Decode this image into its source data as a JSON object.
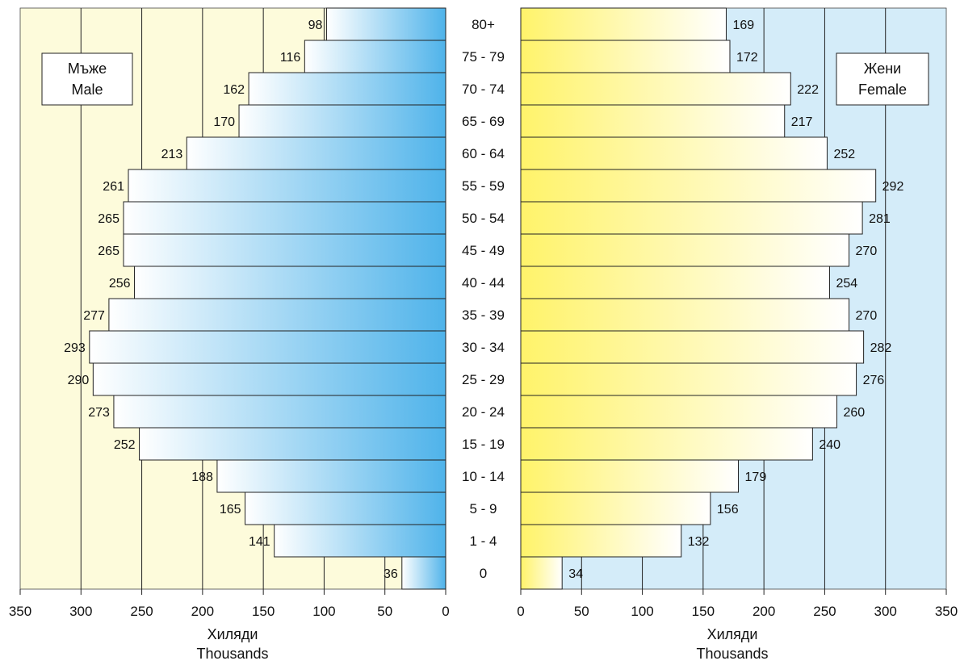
{
  "chart_data": {
    "type": "bar",
    "orientation": "horizontal",
    "layout": "population-pyramid",
    "categories": [
      "80+",
      "75 - 79",
      "70 - 74",
      "65 - 69",
      "60 - 64",
      "55 - 59",
      "50 - 54",
      "45 - 49",
      "40 - 44",
      "35 - 39",
      "30 - 34",
      "25 - 29",
      "20 - 24",
      "15 - 19",
      "10 - 14",
      "5 -  9",
      "1 -  4",
      "0"
    ],
    "series": [
      {
        "name": "Мъже Male",
        "legend_lines": [
          "Мъже",
          "Male"
        ],
        "values": [
          98,
          116,
          162,
          170,
          213,
          261,
          265,
          265,
          256,
          277,
          293,
          290,
          273,
          252,
          188,
          165,
          141,
          36
        ]
      },
      {
        "name": "Жени Female",
        "legend_lines": [
          "Жени",
          "Female"
        ],
        "values": [
          169,
          172,
          222,
          217,
          252,
          292,
          281,
          270,
          254,
          270,
          282,
          276,
          260,
          240,
          179,
          156,
          132,
          34
        ]
      }
    ],
    "xaxis": {
      "range": [
        0,
        350
      ],
      "ticks": [
        0,
        50,
        100,
        150,
        200,
        250,
        300,
        350
      ],
      "label_lines": [
        "Хиляди",
        "Thousands"
      ]
    },
    "grid": "vertical",
    "legend_placement": [
      "top-left",
      "top-right"
    ],
    "colors": {
      "male_bar_light": "#ffffff",
      "male_bar_dark": "#4fb3ea",
      "female_bar_dark": "#fff36a",
      "female_bar_light": "#ffffff",
      "male_panel_bg": "#fdfbdb",
      "female_panel_bg": "#d4ecf9",
      "grid": "#222222"
    }
  }
}
